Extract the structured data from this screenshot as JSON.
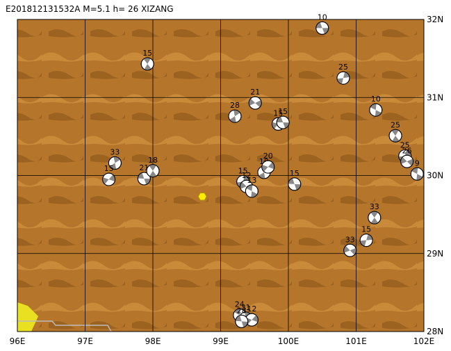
{
  "map": {
    "title": "E201812131532A M=5.1 h= 26 XIZANG",
    "xlim": [
      96,
      102
    ],
    "ylim": [
      28,
      32
    ],
    "xticks": [
      {
        "value": 96,
        "label": "96E"
      },
      {
        "value": 97,
        "label": "97E"
      },
      {
        "value": 98,
        "label": "98E"
      },
      {
        "value": 99,
        "label": "99E"
      },
      {
        "value": 100,
        "label": "100E"
      },
      {
        "value": 101,
        "label": "101E"
      },
      {
        "value": 102,
        "label": "102E"
      }
    ],
    "yticks": [
      {
        "value": 28,
        "label": "28N"
      },
      {
        "value": 29,
        "label": "29N"
      },
      {
        "value": 30,
        "label": "30N"
      },
      {
        "value": 31,
        "label": "31N"
      },
      {
        "value": 32,
        "label": "32N"
      }
    ],
    "epicenter": {
      "lon": 98.73,
      "lat": 29.73
    },
    "events": [
      {
        "lon": 100.5,
        "lat": 31.89,
        "depth": 10
      },
      {
        "lon": 97.92,
        "lat": 31.43,
        "depth": 15
      },
      {
        "lon": 100.81,
        "lat": 31.25,
        "depth": 25
      },
      {
        "lon": 99.51,
        "lat": 30.93,
        "depth": 21
      },
      {
        "lon": 101.29,
        "lat": 30.84,
        "depth": 10
      },
      {
        "lon": 99.21,
        "lat": 30.76,
        "depth": 28
      },
      {
        "lon": 99.85,
        "lat": 30.66,
        "depth": 15
      },
      {
        "lon": 99.92,
        "lat": 30.68,
        "depth": 15
      },
      {
        "lon": 101.58,
        "lat": 30.51,
        "depth": 25
      },
      {
        "lon": 101.72,
        "lat": 30.25,
        "depth": 25
      },
      {
        "lon": 101.75,
        "lat": 30.18,
        "depth": 26
      },
      {
        "lon": 101.9,
        "lat": 30.02,
        "depth": 9
      },
      {
        "lon": 97.44,
        "lat": 30.16,
        "depth": 33
      },
      {
        "lon": 97.35,
        "lat": 29.95,
        "depth": 15
      },
      {
        "lon": 97.87,
        "lat": 29.96,
        "depth": 21
      },
      {
        "lon": 98.0,
        "lat": 30.06,
        "depth": 18
      },
      {
        "lon": 99.33,
        "lat": 29.92,
        "depth": 15
      },
      {
        "lon": 99.38,
        "lat": 29.86,
        "depth": 12
      },
      {
        "lon": 99.46,
        "lat": 29.8,
        "depth": 13
      },
      {
        "lon": 99.64,
        "lat": 30.04,
        "depth": 10
      },
      {
        "lon": 99.7,
        "lat": 30.11,
        "depth": 20
      },
      {
        "lon": 100.09,
        "lat": 29.89,
        "depth": 15
      },
      {
        "lon": 101.27,
        "lat": 29.46,
        "depth": 33
      },
      {
        "lon": 101.15,
        "lat": 29.17,
        "depth": 15
      },
      {
        "lon": 100.91,
        "lat": 29.04,
        "depth": 33
      },
      {
        "lon": 99.28,
        "lat": 28.21,
        "depth": 24
      },
      {
        "lon": 99.37,
        "lat": 28.17,
        "depth": 31
      },
      {
        "lon": 99.46,
        "lat": 28.15,
        "depth": 12
      },
      {
        "lon": 99.31,
        "lat": 28.13,
        "depth": 28
      }
    ]
  }
}
